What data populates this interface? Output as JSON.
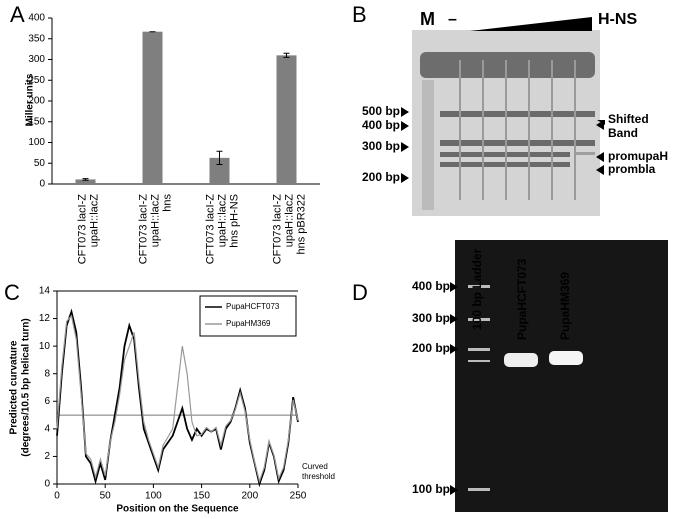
{
  "panel_labels": [
    "A",
    "B",
    "C",
    "D"
  ],
  "chart_data": [
    {
      "type": "bar",
      "ylabel": "Miller units",
      "categories": [
        [
          "CFT073 lacI-Z",
          "upaH::lacZ"
        ],
        [
          "CFT073 lacI-Z",
          "upaH::lacZ",
          "hns"
        ],
        [
          "CFT073 lacI-Z",
          "upaH::lacZ",
          "hns pH-NS"
        ],
        [
          "CFT073 lacI-Z",
          "upaH::lacZ",
          "hns pBR322"
        ]
      ],
      "values": [
        11,
        367,
        63,
        310
      ],
      "error": [
        2,
        0,
        16,
        5
      ],
      "color": "#7f7f7f",
      "ylim": [
        0,
        400
      ],
      "yticks": [
        0,
        50,
        100,
        150,
        200,
        250,
        300,
        350,
        400
      ]
    },
    {
      "type": "line",
      "ylabel": [
        "Predicted curvature",
        "(degrees/10.5 bp helical turn)"
      ],
      "xlabel": "Position on the Sequence",
      "x": [
        0,
        5,
        10,
        15,
        20,
        25,
        30,
        35,
        40,
        45,
        50,
        55,
        60,
        65,
        70,
        75,
        80,
        85,
        90,
        95,
        100,
        105,
        110,
        115,
        120,
        125,
        130,
        135,
        140,
        145,
        150,
        155,
        160,
        165,
        170,
        175,
        180,
        185,
        190,
        195,
        200,
        205,
        210,
        215,
        220,
        225,
        230,
        235,
        240,
        245,
        250
      ],
      "series": [
        {
          "name": "PupaHCFT073",
          "color": "#000000",
          "values": [
            3.5,
            8,
            11.5,
            12.5,
            11,
            7,
            2,
            1.5,
            0.2,
            1.5,
            0.3,
            3,
            5,
            7,
            10,
            11.5,
            10.5,
            7,
            4,
            3,
            2,
            1,
            2.5,
            3,
            3.5,
            4.5,
            5.5,
            4,
            3.2,
            4,
            3.5,
            4,
            3.8,
            4,
            2.5,
            4,
            4.5,
            5.5,
            6.8,
            5.5,
            3,
            1.5,
            0,
            1,
            3,
            2,
            0.2,
            1,
            3,
            6.3,
            4.5
          ]
        },
        {
          "name": "PupaHM369",
          "color": "#999999",
          "values": [
            4,
            8.5,
            11.8,
            12.2,
            10.5,
            6.5,
            2.2,
            1.8,
            0.5,
            1.8,
            0.6,
            3,
            4.5,
            6.5,
            9,
            10,
            11,
            7.5,
            4.5,
            3.2,
            2.2,
            1.2,
            2.8,
            3.4,
            4,
            7,
            10,
            8,
            4.5,
            3.5,
            3.6,
            4.1,
            3.8,
            4.1,
            2.8,
            4.2,
            4.6,
            5.4,
            6.6,
            5.3,
            3.2,
            1.6,
            0.2,
            1.2,
            3.1,
            2.1,
            0.4,
            1.2,
            3.2,
            6.1,
            4.6
          ]
        }
      ],
      "threshold": 5,
      "threshold_label": [
        "Curved",
        "threshold"
      ],
      "xlim": [
        0,
        250
      ],
      "xticks": [
        0,
        50,
        100,
        150,
        200,
        250
      ],
      "ylim": [
        0,
        14
      ],
      "yticks": [
        0,
        2,
        4,
        6,
        8,
        10,
        12,
        14
      ]
    }
  ],
  "gel_b": {
    "lane_m": "M",
    "lane_minus": "–",
    "wedge": "H-NS",
    "markers": [
      "500 bp",
      "400 bp",
      "300 bp",
      "200 bp"
    ],
    "bands": [
      [
        "Shifted",
        "Band"
      ],
      "promupaH",
      "prombla"
    ]
  },
  "gel_d": {
    "lanes": [
      "100 bp Ladder",
      "PupaHCFT073",
      "PupaHM369"
    ],
    "markers": [
      "400 bp",
      "300 bp",
      "200 bp",
      "100 bp"
    ]
  }
}
